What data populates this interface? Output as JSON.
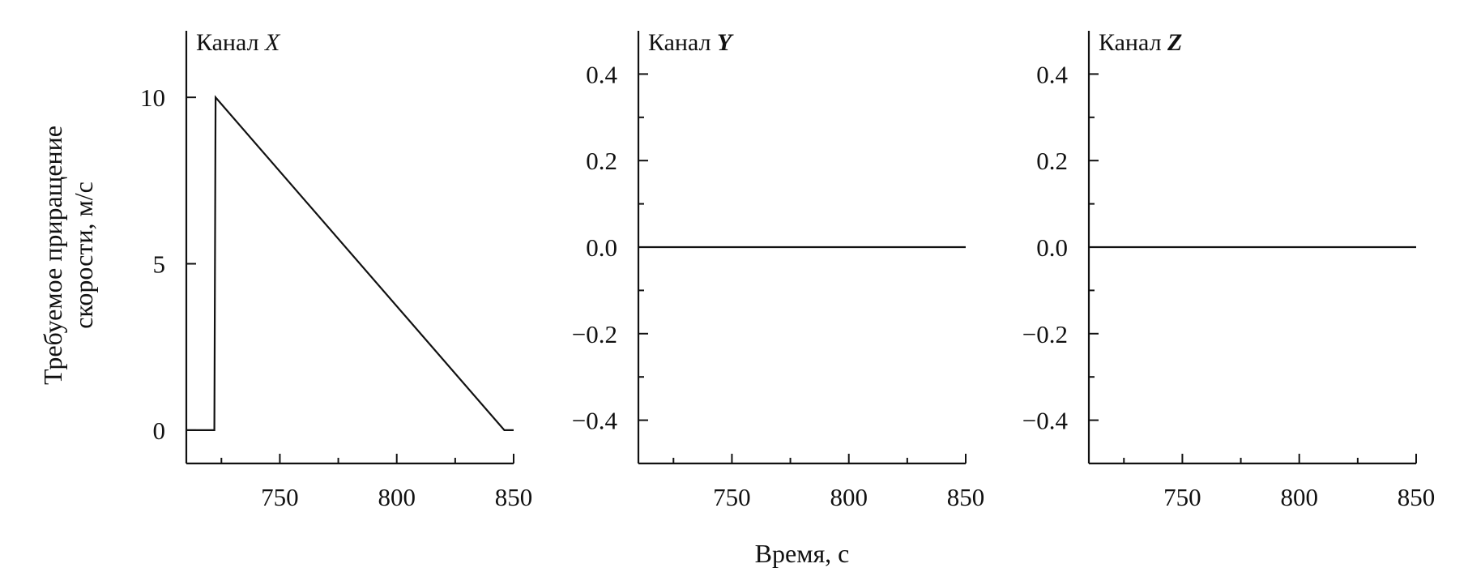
{
  "chart_data": [
    {
      "type": "line",
      "title": "Канал X",
      "title_prefix": "Канал",
      "title_var": "X",
      "xlabel": "",
      "ylabel": "Требуемое приращение скорости, м/с",
      "ylabel_lines": [
        "Требуемое приращение",
        "скорости, м/с"
      ],
      "xlim": [
        710,
        850
      ],
      "ylim": [
        -1,
        12
      ],
      "xticks": [
        750,
        800,
        850
      ],
      "xminor": [
        725,
        775,
        825
      ],
      "yticks": [
        0,
        5,
        10
      ],
      "yminor": [],
      "series": [
        {
          "x": [
            710,
            722,
            722,
            722.5,
            846,
            850
          ],
          "y": [
            0,
            0,
            0,
            10,
            0,
            0
          ]
        }
      ]
    },
    {
      "type": "line",
      "title": "Канал Y",
      "title_prefix": "Канал",
      "title_var": "Y",
      "xlabel": "Время, с",
      "ylabel": "",
      "xlim": [
        710,
        850
      ],
      "ylim": [
        -0.5,
        0.5
      ],
      "xticks": [
        750,
        800,
        850
      ],
      "xminor": [
        725,
        775,
        825
      ],
      "yticks": [
        0.4,
        0.2,
        0.0,
        -0.2,
        -0.4
      ],
      "ytick_labels": [
        "0.4",
        "0.2",
        "0.0",
        "−0.2",
        "−0.4"
      ],
      "yminor": [
        0.3,
        0.1,
        -0.1,
        -0.3
      ],
      "series": [
        {
          "x": [
            710,
            850
          ],
          "y": [
            0,
            0
          ]
        }
      ]
    },
    {
      "type": "line",
      "title": "Канал Z",
      "title_prefix": "Канал",
      "title_var": "Z",
      "xlabel": "",
      "ylabel": "",
      "xlim": [
        710,
        850
      ],
      "ylim": [
        -0.5,
        0.5
      ],
      "xticks": [
        750,
        800,
        850
      ],
      "xminor": [
        725,
        775,
        825
      ],
      "yticks": [
        0.4,
        0.2,
        0.0,
        -0.2,
        -0.4
      ],
      "ytick_labels": [
        "0.4",
        "0.2",
        "0.0",
        "−0.2",
        "−0.4"
      ],
      "yminor": [
        0.3,
        0.1,
        -0.1,
        -0.3
      ],
      "series": [
        {
          "x": [
            710,
            850
          ],
          "y": [
            0,
            0
          ]
        }
      ]
    }
  ]
}
